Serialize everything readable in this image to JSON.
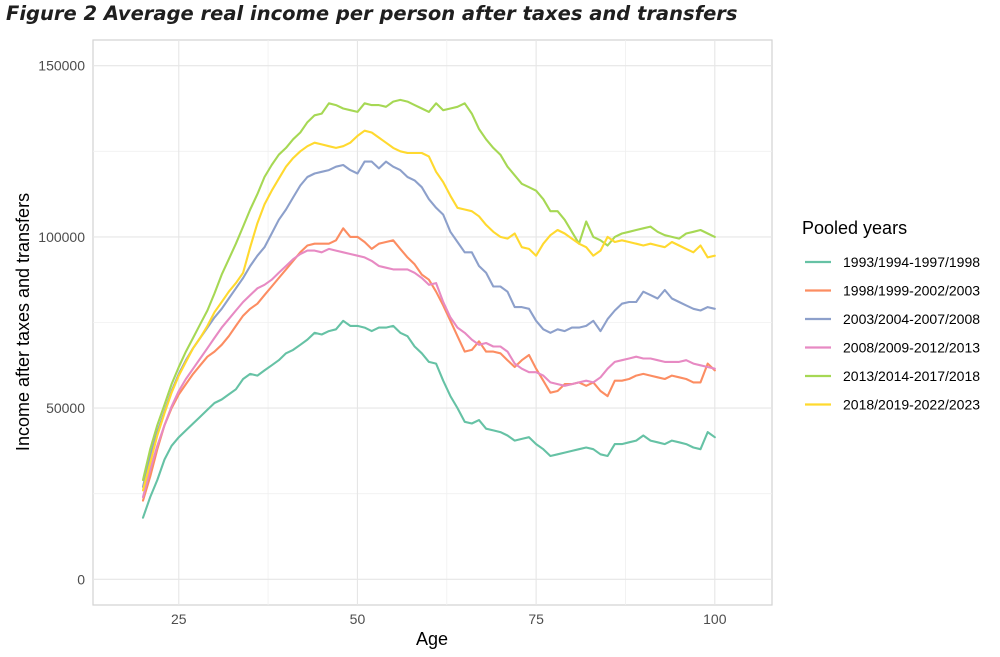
{
  "figure_title": "Figure 2 Average real income per person after taxes and transfers",
  "chart_data": {
    "type": "line",
    "title": "",
    "xlabel": "Age",
    "ylabel": "Income after taxes and transfers",
    "xlim": [
      13,
      108
    ],
    "ylim": [
      -7500,
      157500
    ],
    "x_ticks": [
      25,
      50,
      75,
      100
    ],
    "y_ticks": [
      0,
      50000,
      100000,
      150000
    ],
    "y_tick_labels": [
      "0",
      "50000",
      "100000",
      "150000"
    ],
    "grid": true,
    "legend": {
      "title": "Pooled years",
      "position": "right"
    },
    "series": [
      {
        "name": "1993/1994-1997/1998",
        "color": "#66c2a5",
        "x": [
          20,
          21,
          22,
          23,
          24,
          25,
          26,
          27,
          28,
          29,
          30,
          31,
          32,
          33,
          34,
          35,
          36,
          37,
          38,
          39,
          40,
          41,
          42,
          43,
          44,
          45,
          46,
          47,
          48,
          49,
          50,
          51,
          52,
          53,
          54,
          55,
          56,
          57,
          58,
          59,
          60,
          61,
          62,
          63,
          64,
          65,
          66,
          67,
          68,
          69,
          70,
          71,
          72,
          73,
          74,
          75,
          76,
          77,
          78,
          79,
          80,
          81,
          82,
          83,
          84,
          85,
          86,
          87,
          88,
          89,
          90,
          91,
          92,
          93,
          94,
          95,
          96,
          97,
          98,
          99,
          100
        ],
        "y": [
          18000,
          24000,
          29000,
          35000,
          39000,
          41500,
          43500,
          45500,
          47500,
          49500,
          51500,
          52500,
          54000,
          55500,
          58500,
          60000,
          59500,
          61000,
          62500,
          64000,
          66000,
          67000,
          68500,
          70000,
          72000,
          71500,
          72500,
          73000,
          75500,
          74000,
          74000,
          73500,
          72500,
          73500,
          73500,
          74000,
          72000,
          71000,
          68000,
          66000,
          63500,
          63000,
          58000,
          53500,
          50000,
          46000,
          45500,
          46500,
          44000,
          43500,
          43000,
          42000,
          40500,
          41000,
          41500,
          39500,
          38000,
          36000,
          36500,
          37000,
          37500,
          38000,
          38500,
          38000,
          36500,
          36000,
          39500,
          39500,
          40000,
          40500,
          42000,
          40500,
          40000,
          39500,
          40500,
          40000,
          39500,
          38500,
          38000,
          43000,
          41500
        ]
      },
      {
        "name": "1998/1999-2002/2003",
        "color": "#fc8d62",
        "x": [
          20,
          21,
          22,
          23,
          24,
          25,
          26,
          27,
          28,
          29,
          30,
          31,
          32,
          33,
          34,
          35,
          36,
          37,
          38,
          39,
          40,
          41,
          42,
          43,
          44,
          45,
          46,
          47,
          48,
          49,
          50,
          51,
          52,
          53,
          54,
          55,
          56,
          57,
          58,
          59,
          60,
          61,
          62,
          63,
          64,
          65,
          66,
          67,
          68,
          69,
          70,
          71,
          72,
          73,
          74,
          75,
          76,
          77,
          78,
          79,
          80,
          81,
          82,
          83,
          84,
          85,
          86,
          87,
          88,
          89,
          90,
          91,
          92,
          93,
          94,
          95,
          96,
          97,
          98,
          99,
          100
        ],
        "y": [
          23000,
          30000,
          38000,
          45000,
          50000,
          54000,
          57000,
          60000,
          62500,
          65000,
          66500,
          68500,
          71000,
          74000,
          77000,
          79000,
          80500,
          83000,
          85500,
          88000,
          90500,
          93000,
          95500,
          97500,
          98000,
          98000,
          98000,
          99000,
          102500,
          100000,
          100000,
          98500,
          96500,
          98000,
          98500,
          99000,
          96500,
          94000,
          92000,
          89000,
          87500,
          84000,
          80000,
          75500,
          71000,
          66500,
          67000,
          69500,
          66500,
          66500,
          66000,
          64000,
          62000,
          64000,
          65500,
          61500,
          58000,
          54500,
          55000,
          57000,
          57000,
          57500,
          56500,
          57500,
          55000,
          53500,
          58000,
          58000,
          58500,
          59500,
          60000,
          59500,
          59000,
          58500,
          59500,
          59000,
          58500,
          57500,
          57500,
          63000,
          61000
        ]
      },
      {
        "name": "2003/2004-2007/2008",
        "color": "#8da0cb",
        "x": [
          20,
          21,
          22,
          23,
          24,
          25,
          26,
          27,
          28,
          29,
          30,
          31,
          32,
          33,
          34,
          35,
          36,
          37,
          38,
          39,
          40,
          41,
          42,
          43,
          44,
          45,
          46,
          47,
          48,
          49,
          50,
          51,
          52,
          53,
          54,
          55,
          56,
          57,
          58,
          59,
          60,
          61,
          62,
          63,
          64,
          65,
          66,
          67,
          68,
          69,
          70,
          71,
          72,
          73,
          74,
          75,
          76,
          77,
          78,
          79,
          80,
          81,
          82,
          83,
          84,
          85,
          86,
          87,
          88,
          89,
          90,
          91,
          92,
          93,
          94,
          95,
          96,
          97,
          98,
          99,
          100
        ],
        "y": [
          27000,
          36000,
          43000,
          49000,
          55000,
          60000,
          64000,
          67500,
          70500,
          73500,
          76500,
          79000,
          82000,
          85000,
          88000,
          91500,
          94500,
          97000,
          101000,
          105000,
          108000,
          111500,
          115000,
          117500,
          118500,
          119000,
          119500,
          120500,
          121000,
          119500,
          118500,
          122000,
          122000,
          120000,
          122000,
          120500,
          119500,
          117500,
          116500,
          114500,
          111000,
          108500,
          106500,
          101500,
          98500,
          95500,
          95500,
          91500,
          89500,
          85500,
          85500,
          84000,
          79500,
          79500,
          79000,
          75500,
          73000,
          72000,
          73000,
          72500,
          73500,
          73500,
          74000,
          75500,
          72500,
          76000,
          78500,
          80500,
          81000,
          81000,
          84000,
          83000,
          82000,
          84500,
          82000,
          81000,
          80000,
          79000,
          78500,
          79500,
          79000
        ]
      },
      {
        "name": "2008/2009-2012/2013",
        "color": "#e78ac3",
        "x": [
          20,
          21,
          22,
          23,
          24,
          25,
          26,
          27,
          28,
          29,
          30,
          31,
          32,
          33,
          34,
          35,
          36,
          37,
          38,
          39,
          40,
          41,
          42,
          43,
          44,
          45,
          46,
          47,
          48,
          49,
          50,
          51,
          52,
          53,
          54,
          55,
          56,
          57,
          58,
          59,
          60,
          61,
          62,
          63,
          64,
          65,
          66,
          67,
          68,
          69,
          70,
          71,
          72,
          73,
          74,
          75,
          76,
          77,
          78,
          79,
          80,
          81,
          82,
          83,
          84,
          85,
          86,
          87,
          88,
          89,
          90,
          91,
          92,
          93,
          94,
          95,
          96,
          97,
          98,
          99,
          100
        ],
        "y": [
          24000,
          32000,
          39000,
          45000,
          50500,
          55000,
          58500,
          61500,
          64500,
          67500,
          70500,
          73500,
          76000,
          78500,
          81000,
          83000,
          85000,
          86000,
          87500,
          89500,
          91500,
          93500,
          95000,
          96000,
          96000,
          95500,
          96500,
          96000,
          95500,
          95000,
          94500,
          94000,
          93000,
          91500,
          91000,
          90500,
          90500,
          90500,
          89500,
          88000,
          86000,
          86500,
          81000,
          76500,
          73500,
          72000,
          70000,
          68500,
          69000,
          68000,
          68000,
          66500,
          63000,
          61500,
          60500,
          60500,
          59500,
          57500,
          57000,
          56500,
          57000,
          57500,
          58000,
          57500,
          59000,
          61500,
          63500,
          64000,
          64500,
          65000,
          64500,
          64500,
          64000,
          63500,
          63500,
          63500,
          64000,
          63000,
          62500,
          62000,
          61500
        ]
      },
      {
        "name": "2013/2014-2017/2018",
        "color": "#a6d854",
        "x": [
          20,
          21,
          22,
          23,
          24,
          25,
          26,
          27,
          28,
          29,
          30,
          31,
          32,
          33,
          34,
          35,
          36,
          37,
          38,
          39,
          40,
          41,
          42,
          43,
          44,
          45,
          46,
          47,
          48,
          49,
          50,
          51,
          52,
          53,
          54,
          55,
          56,
          57,
          58,
          59,
          60,
          61,
          62,
          63,
          64,
          65,
          66,
          67,
          68,
          69,
          70,
          71,
          72,
          73,
          74,
          75,
          76,
          77,
          78,
          79,
          80,
          81,
          82,
          83,
          84,
          85,
          86,
          87,
          88,
          89,
          90,
          91,
          92,
          93,
          94,
          95,
          96,
          97,
          98,
          99,
          100
        ],
        "y": [
          29000,
          38000,
          45000,
          51000,
          57000,
          62000,
          66500,
          70500,
          74500,
          78500,
          83500,
          89000,
          93500,
          98000,
          103000,
          108000,
          112500,
          117500,
          121000,
          124000,
          126000,
          128500,
          130500,
          133500,
          135500,
          136000,
          139000,
          138500,
          137500,
          137000,
          136500,
          139000,
          138500,
          138500,
          138000,
          139500,
          140000,
          139500,
          138500,
          137500,
          136500,
          139000,
          137000,
          137500,
          138000,
          139000,
          136000,
          131500,
          128500,
          126000,
          124000,
          120500,
          118000,
          115500,
          114500,
          113500,
          111000,
          107500,
          107500,
          105000,
          101500,
          98000,
          104500,
          100000,
          99000,
          97500,
          100000,
          101000,
          101500,
          102000,
          102500,
          103000,
          101500,
          100500,
          100000,
          99500,
          101000,
          101500,
          102000,
          101000,
          100000
        ]
      },
      {
        "name": "2018/2019-2022/2023",
        "color": "#ffd92f",
        "x": [
          20,
          21,
          22,
          23,
          24,
          25,
          26,
          27,
          28,
          29,
          30,
          31,
          32,
          33,
          34,
          35,
          36,
          37,
          38,
          39,
          40,
          41,
          42,
          43,
          44,
          45,
          46,
          47,
          48,
          49,
          50,
          51,
          52,
          53,
          54,
          55,
          56,
          57,
          58,
          59,
          60,
          61,
          62,
          63,
          64,
          65,
          66,
          67,
          68,
          69,
          70,
          71,
          72,
          73,
          74,
          75,
          76,
          77,
          78,
          79,
          80,
          81,
          82,
          83,
          84,
          85,
          86,
          87,
          88,
          89,
          90,
          91,
          92,
          93,
          94,
          95,
          96,
          97,
          98,
          99,
          100
        ],
        "y": [
          26000,
          34000,
          42000,
          48500,
          54500,
          59500,
          63500,
          67500,
          70500,
          74000,
          78000,
          81000,
          84000,
          86500,
          89500,
          97000,
          104000,
          109500,
          113500,
          117000,
          120500,
          123000,
          125000,
          126500,
          127500,
          127000,
          126500,
          126000,
          126500,
          127500,
          129500,
          131000,
          130500,
          129000,
          127500,
          126000,
          125000,
          124500,
          124500,
          124500,
          123500,
          119000,
          116000,
          112000,
          108500,
          108000,
          107500,
          106000,
          103500,
          101500,
          100000,
          99500,
          101000,
          97000,
          96500,
          94500,
          98000,
          100500,
          102000,
          101000,
          99500,
          98000,
          97000,
          94500,
          96000,
          100000,
          98500,
          99000,
          98500,
          98000,
          97500,
          98000,
          97500,
          97000,
          98500,
          97500,
          96500,
          95500,
          97500,
          94000,
          94500
        ]
      }
    ]
  }
}
